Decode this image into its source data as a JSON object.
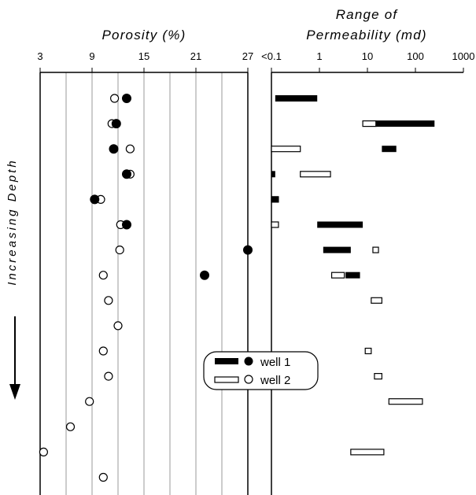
{
  "chart_data": [
    {
      "type": "scatter",
      "title": "Porosity (%)",
      "xlabel": "Porosity (%)",
      "ylabel": "Increasing Depth",
      "xlim": [
        3,
        27
      ],
      "x_tick_labels": [
        "3",
        "9",
        "15",
        "21",
        "27"
      ],
      "y_axis_direction": "depth increases downward",
      "grid": "vertical lines every 3%",
      "samples": [
        1,
        2,
        3,
        4,
        5,
        6,
        7,
        8,
        9,
        10,
        11,
        12,
        13,
        14,
        15,
        16
      ],
      "series": [
        {
          "name": "well 1",
          "marker": "filled circle",
          "points": [
            {
              "sample": 1,
              "porosity": 13.0
            },
            {
              "sample": 2,
              "porosity": 11.8
            },
            {
              "sample": 3,
              "porosity": 11.5
            },
            {
              "sample": 4,
              "porosity": 13.0
            },
            {
              "sample": 5,
              "porosity": 9.3
            },
            {
              "sample": 6,
              "porosity": 13.0
            },
            {
              "sample": 7,
              "porosity": 27.0
            },
            {
              "sample": 8,
              "porosity": 22.0
            }
          ]
        },
        {
          "name": "well 2",
          "marker": "open circle",
          "points": [
            {
              "sample": 1,
              "porosity": 11.6
            },
            {
              "sample": 2,
              "porosity": 11.3
            },
            {
              "sample": 3,
              "porosity": 13.4
            },
            {
              "sample": 4,
              "porosity": 13.4
            },
            {
              "sample": 5,
              "porosity": 10.0
            },
            {
              "sample": 6,
              "porosity": 12.3
            },
            {
              "sample": 7,
              "porosity": 12.2
            },
            {
              "sample": 8,
              "porosity": 10.3
            },
            {
              "sample": 9,
              "porosity": 10.9
            },
            {
              "sample": 10,
              "porosity": 12.0
            },
            {
              "sample": 11,
              "porosity": 10.3
            },
            {
              "sample": 12,
              "porosity": 10.9
            },
            {
              "sample": 13,
              "porosity": 8.7
            },
            {
              "sample": 14,
              "porosity": 6.5
            },
            {
              "sample": 15,
              "porosity": 3.4
            },
            {
              "sample": 16,
              "porosity": 10.3
            }
          ]
        }
      ]
    },
    {
      "type": "bar",
      "orientation": "horizontal floating range",
      "title_lines": [
        "Range of",
        "Permeability (md)"
      ],
      "xlabel": "Permeability (md)",
      "x_scale": "log",
      "xlim": [
        0.1,
        1000
      ],
      "x_tick_labels": [
        "<0.1",
        "1",
        "10",
        "100",
        "1000"
      ],
      "x_tick_values": [
        0.1,
        1,
        10,
        100,
        1000
      ],
      "series": [
        {
          "name": "well 1",
          "fill": "#000000",
          "ranges": [
            {
              "sample": 1,
              "min": 0.12,
              "max": 0.9
            },
            {
              "sample": 2,
              "min": 15,
              "max": 250
            },
            {
              "sample": 3,
              "min": 20,
              "max": 40
            },
            {
              "sample": 4,
              "min": 0.1,
              "max": 0.12
            },
            {
              "sample": 5,
              "min": 0.1,
              "max": 0.14
            },
            {
              "sample": 6,
              "min": 0.9,
              "max": 8
            },
            {
              "sample": 7,
              "min": 1.2,
              "max": 4.5
            },
            {
              "sample": 8,
              "min": 3.5,
              "max": 7
            }
          ]
        },
        {
          "name": "well 2",
          "fill": "#ffffff",
          "ranges": [
            {
              "sample": 2,
              "min": 8,
              "max": 15
            },
            {
              "sample": 3,
              "min": 0.1,
              "max": 0.4
            },
            {
              "sample": 4,
              "min": 0.4,
              "max": 1.7
            },
            {
              "sample": 5,
              "min": 0.1,
              "max": 0.14
            },
            {
              "sample": 6,
              "min": 0.1,
              "max": 0.14
            },
            {
              "sample": 7,
              "min": 13,
              "max": 17
            },
            {
              "sample": 8,
              "min": 1.8,
              "max": 3.3
            },
            {
              "sample": 9,
              "min": 12,
              "max": 20
            },
            {
              "sample": 11,
              "min": 9,
              "max": 12
            },
            {
              "sample": 12,
              "min": 14,
              "max": 20
            },
            {
              "sample": 13,
              "min": 28,
              "max": 140
            },
            {
              "sample": 15,
              "min": 4.5,
              "max": 22
            }
          ]
        }
      ]
    }
  ],
  "legend": {
    "placement": "right-middle",
    "entries": [
      {
        "label": "well 1",
        "style": "filled"
      },
      {
        "label": "well 2",
        "style": "open"
      }
    ]
  },
  "annotations": {
    "depth_label": "Increasing Depth"
  }
}
